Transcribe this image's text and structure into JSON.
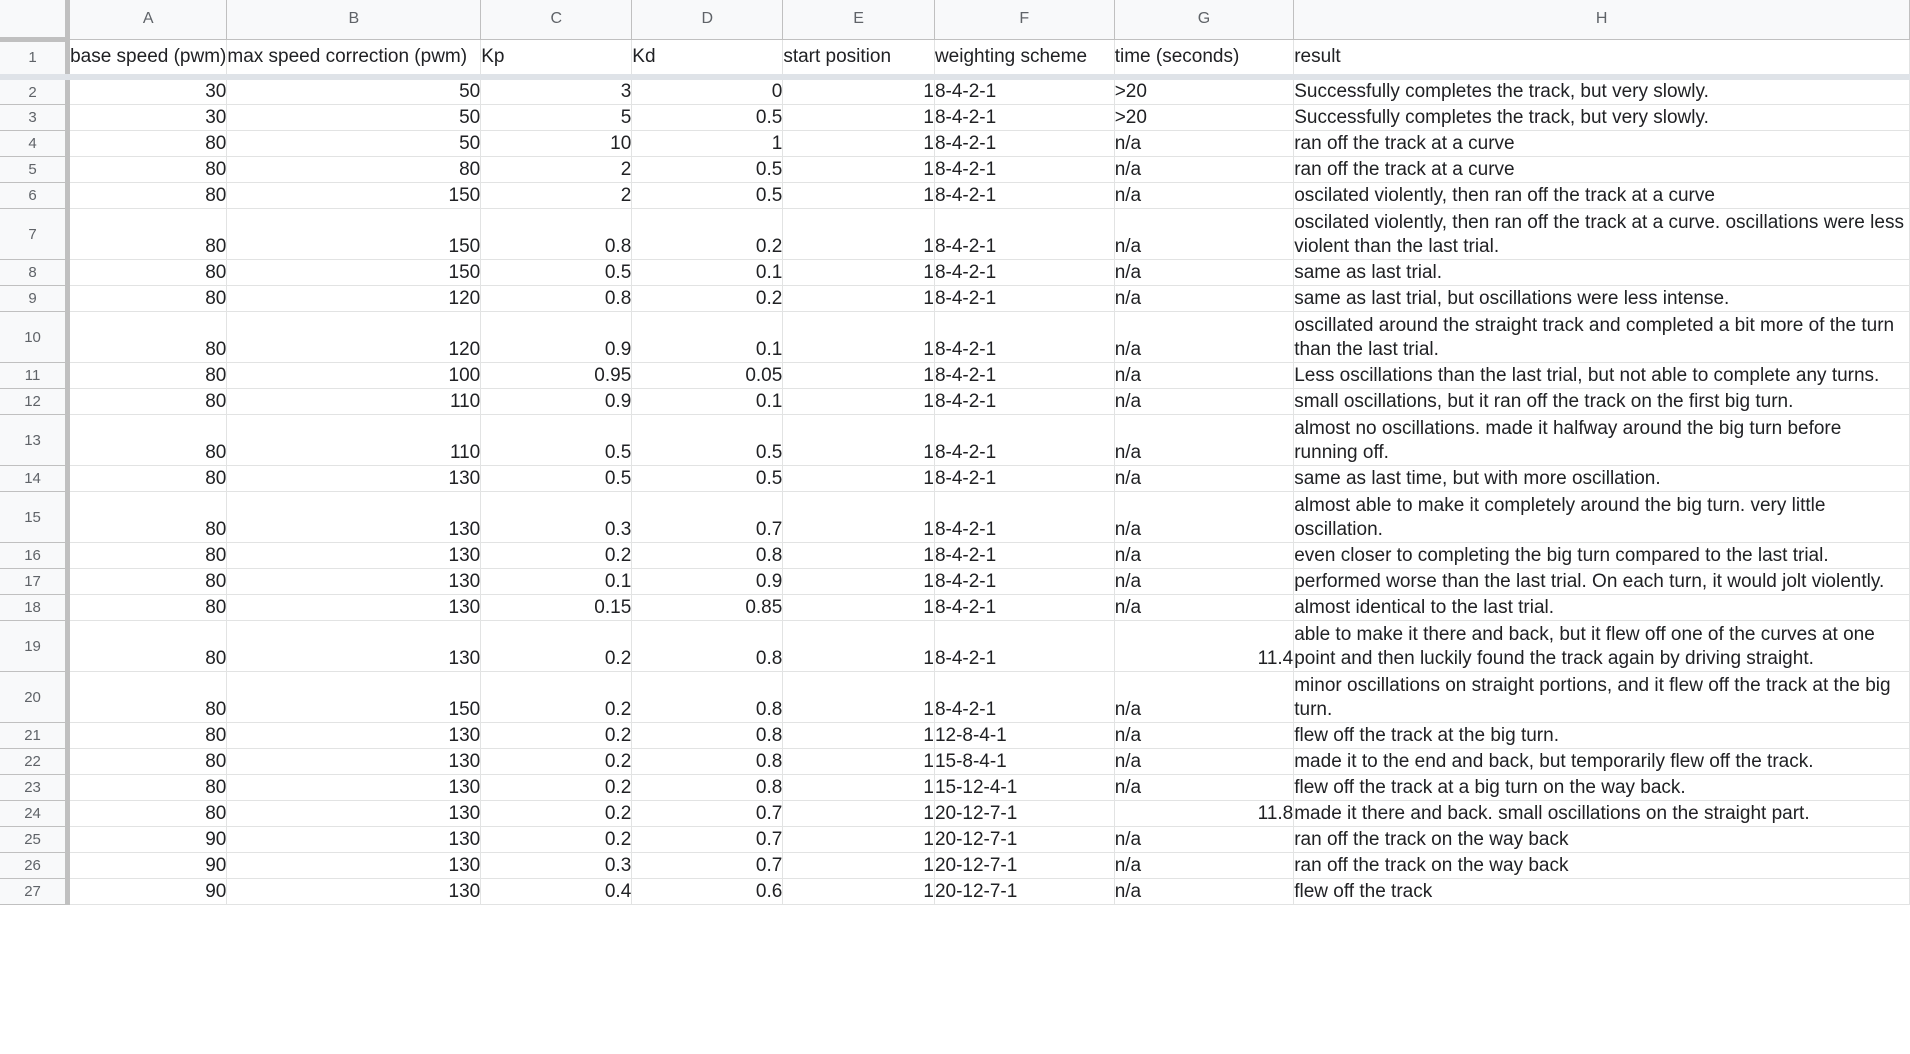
{
  "columns": [
    "A",
    "B",
    "C",
    "D",
    "E",
    "F",
    "G",
    "H"
  ],
  "column_types": [
    "num",
    "num",
    "num",
    "num",
    "num",
    "txt",
    "mixed",
    "wrap"
  ],
  "header_row": {
    "number": "1",
    "cells": [
      "base speed (pwm)",
      "max speed correction (pwm)",
      "Kp",
      "Kd",
      "start position",
      "weighting scheme",
      "time (seconds)",
      "result"
    ]
  },
  "rows": [
    {
      "number": "2",
      "cells": [
        "30",
        "50",
        "3",
        "0",
        "1",
        "8-4-2-1",
        ">20",
        "Successfully completes the track, but very slowly."
      ]
    },
    {
      "number": "3",
      "cells": [
        "30",
        "50",
        "5",
        "0.5",
        "1",
        "8-4-2-1",
        ">20",
        "Successfully completes the track, but very slowly."
      ]
    },
    {
      "number": "4",
      "cells": [
        "80",
        "50",
        "10",
        "1",
        "1",
        "8-4-2-1",
        "n/a",
        "ran off the track at a curve"
      ]
    },
    {
      "number": "5",
      "cells": [
        "80",
        "80",
        "2",
        "0.5",
        "1",
        "8-4-2-1",
        "n/a",
        "ran off the track at a curve"
      ]
    },
    {
      "number": "6",
      "cells": [
        "80",
        "150",
        "2",
        "0.5",
        "1",
        "8-4-2-1",
        "n/a",
        "oscilated violently, then ran off the track at a curve"
      ]
    },
    {
      "number": "7",
      "cells": [
        "80",
        "150",
        "0.8",
        "0.2",
        "1",
        "8-4-2-1",
        "n/a",
        "oscilated violently, then ran off the track at a curve. oscillations were less violent than the last trial."
      ]
    },
    {
      "number": "8",
      "cells": [
        "80",
        "150",
        "0.5",
        "0.1",
        "1",
        "8-4-2-1",
        "n/a",
        "same as last trial."
      ]
    },
    {
      "number": "9",
      "cells": [
        "80",
        "120",
        "0.8",
        "0.2",
        "1",
        "8-4-2-1",
        "n/a",
        "same as last trial, but oscillations were less intense."
      ]
    },
    {
      "number": "10",
      "cells": [
        "80",
        "120",
        "0.9",
        "0.1",
        "1",
        "8-4-2-1",
        "n/a",
        "oscillated around the straight track and completed a bit more of the turn than the last trial."
      ]
    },
    {
      "number": "11",
      "cells": [
        "80",
        "100",
        "0.95",
        "0.05",
        "1",
        "8-4-2-1",
        "n/a",
        "Less oscillations than the last trial, but not able to complete any turns."
      ]
    },
    {
      "number": "12",
      "cells": [
        "80",
        "110",
        "0.9",
        "0.1",
        "1",
        "8-4-2-1",
        "n/a",
        "small oscillations, but it ran off the track on the first big turn."
      ]
    },
    {
      "number": "13",
      "cells": [
        "80",
        "110",
        "0.5",
        "0.5",
        "1",
        "8-4-2-1",
        "n/a",
        "almost no oscillations. made it halfway around the big turn before running off."
      ]
    },
    {
      "number": "14",
      "cells": [
        "80",
        "130",
        "0.5",
        "0.5",
        "1",
        "8-4-2-1",
        "n/a",
        "same as last time, but with more oscillation."
      ]
    },
    {
      "number": "15",
      "cells": [
        "80",
        "130",
        "0.3",
        "0.7",
        "1",
        "8-4-2-1",
        "n/a",
        "almost able to make it completely around the big turn. very little oscillation."
      ]
    },
    {
      "number": "16",
      "cells": [
        "80",
        "130",
        "0.2",
        "0.8",
        "1",
        "8-4-2-1",
        "n/a",
        "even closer to completing the big turn compared to the last trial."
      ]
    },
    {
      "number": "17",
      "cells": [
        "80",
        "130",
        "0.1",
        "0.9",
        "1",
        "8-4-2-1",
        "n/a",
        "performed worse than the last trial. On each turn, it would jolt violently."
      ]
    },
    {
      "number": "18",
      "cells": [
        "80",
        "130",
        "0.15",
        "0.85",
        "1",
        "8-4-2-1",
        "n/a",
        "almost identical to the last trial."
      ]
    },
    {
      "number": "19",
      "cells": [
        "80",
        "130",
        "0.2",
        "0.8",
        "1",
        "8-4-2-1",
        "11.4",
        "able to make it there and back, but it flew off one of the curves at one point and then luckily found the track again by driving straight."
      ]
    },
    {
      "number": "20",
      "cells": [
        "80",
        "150",
        "0.2",
        "0.8",
        "1",
        "8-4-2-1",
        "n/a",
        "minor oscillations on straight portions, and it flew off the track at the big turn."
      ]
    },
    {
      "number": "21",
      "cells": [
        "80",
        "130",
        "0.2",
        "0.8",
        "1",
        "12-8-4-1",
        "n/a",
        "flew off the track at the big turn."
      ]
    },
    {
      "number": "22",
      "cells": [
        "80",
        "130",
        "0.2",
        "0.8",
        "1",
        "15-8-4-1",
        "n/a",
        "made it to the end and back, but temporarily flew off the track."
      ]
    },
    {
      "number": "23",
      "cells": [
        "80",
        "130",
        "0.2",
        "0.8",
        "1",
        "15-12-4-1",
        "n/a",
        "flew off the track at a big turn on the way back."
      ]
    },
    {
      "number": "24",
      "cells": [
        "80",
        "130",
        "0.2",
        "0.7",
        "1",
        "20-12-7-1",
        "11.8",
        "made it there and back. small oscillations on the straight part."
      ]
    },
    {
      "number": "25",
      "cells": [
        "90",
        "130",
        "0.2",
        "0.7",
        "1",
        "20-12-7-1",
        "n/a",
        "ran off the track on the way back"
      ]
    },
    {
      "number": "26",
      "cells": [
        "90",
        "130",
        "0.3",
        "0.7",
        "1",
        "20-12-7-1",
        "n/a",
        "ran off the track on the way back"
      ]
    },
    {
      "number": "27",
      "cells": [
        "90",
        "130",
        "0.4",
        "0.6",
        "1",
        "20-12-7-1",
        "n/a",
        "flew off the track"
      ]
    }
  ],
  "tall_rows": [
    "7",
    "10",
    "13",
    "15",
    "19",
    "20"
  ]
}
